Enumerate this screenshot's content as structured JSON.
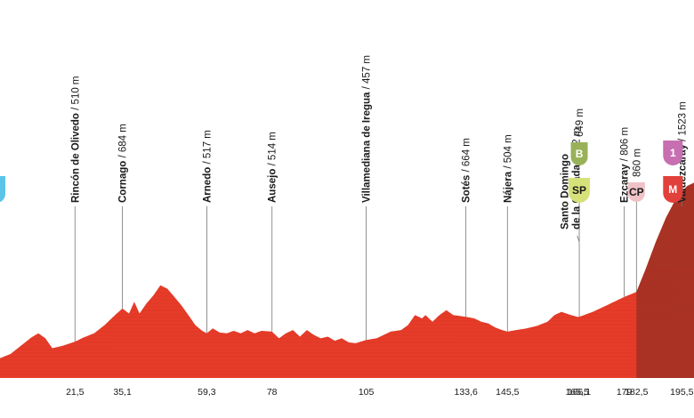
{
  "chart_data": {
    "type": "area",
    "title": "",
    "xlabel": "",
    "ylabel": "",
    "xlim": [
      0,
      199
    ],
    "ylim": [
      0,
      1650
    ],
    "colors": {
      "fill": "#e63c29",
      "finish_fill": "#a83224",
      "grid": "#b8281a",
      "axis": "#555555"
    },
    "profile": [
      {
        "km": 0,
        "elev": 320
      },
      {
        "km": 3,
        "elev": 345
      },
      {
        "km": 6,
        "elev": 395
      },
      {
        "km": 9,
        "elev": 445
      },
      {
        "km": 11,
        "elev": 470
      },
      {
        "km": 13,
        "elev": 440
      },
      {
        "km": 15,
        "elev": 380
      },
      {
        "km": 18,
        "elev": 395
      },
      {
        "km": 21.5,
        "elev": 420
      },
      {
        "km": 24,
        "elev": 445
      },
      {
        "km": 27,
        "elev": 470
      },
      {
        "km": 30,
        "elev": 520
      },
      {
        "km": 33,
        "elev": 580
      },
      {
        "km": 35.1,
        "elev": 620
      },
      {
        "km": 37,
        "elev": 590
      },
      {
        "km": 38.5,
        "elev": 660
      },
      {
        "km": 40,
        "elev": 590
      },
      {
        "km": 42,
        "elev": 650
      },
      {
        "km": 44,
        "elev": 700
      },
      {
        "km": 46,
        "elev": 760
      },
      {
        "km": 48,
        "elev": 740
      },
      {
        "km": 50,
        "elev": 690
      },
      {
        "km": 52,
        "elev": 640
      },
      {
        "km": 54,
        "elev": 580
      },
      {
        "km": 56,
        "elev": 520
      },
      {
        "km": 58,
        "elev": 485
      },
      {
        "km": 59.3,
        "elev": 470
      },
      {
        "km": 61,
        "elev": 500
      },
      {
        "km": 63,
        "elev": 475
      },
      {
        "km": 65,
        "elev": 470
      },
      {
        "km": 67,
        "elev": 485
      },
      {
        "km": 69,
        "elev": 470
      },
      {
        "km": 71,
        "elev": 490
      },
      {
        "km": 73,
        "elev": 470
      },
      {
        "km": 75,
        "elev": 485
      },
      {
        "km": 78,
        "elev": 480
      },
      {
        "km": 80,
        "elev": 440
      },
      {
        "km": 82,
        "elev": 470
      },
      {
        "km": 84,
        "elev": 490
      },
      {
        "km": 86,
        "elev": 450
      },
      {
        "km": 88,
        "elev": 490
      },
      {
        "km": 90,
        "elev": 460
      },
      {
        "km": 92,
        "elev": 440
      },
      {
        "km": 94,
        "elev": 450
      },
      {
        "km": 96,
        "elev": 425
      },
      {
        "km": 98,
        "elev": 440
      },
      {
        "km": 100,
        "elev": 415
      },
      {
        "km": 102,
        "elev": 410
      },
      {
        "km": 105,
        "elev": 430
      },
      {
        "km": 108,
        "elev": 440
      },
      {
        "km": 110,
        "elev": 460
      },
      {
        "km": 112,
        "elev": 480
      },
      {
        "km": 115,
        "elev": 490
      },
      {
        "km": 117,
        "elev": 520
      },
      {
        "km": 119,
        "elev": 580
      },
      {
        "km": 121,
        "elev": 560
      },
      {
        "km": 122,
        "elev": 580
      },
      {
        "km": 124,
        "elev": 540
      },
      {
        "km": 126,
        "elev": 580
      },
      {
        "km": 128,
        "elev": 610
      },
      {
        "km": 130,
        "elev": 580
      },
      {
        "km": 133.6,
        "elev": 570
      },
      {
        "km": 136,
        "elev": 560
      },
      {
        "km": 138,
        "elev": 540
      },
      {
        "km": 140,
        "elev": 530
      },
      {
        "km": 142,
        "elev": 505
      },
      {
        "km": 144,
        "elev": 490
      },
      {
        "km": 145.5,
        "elev": 480
      },
      {
        "km": 148,
        "elev": 490
      },
      {
        "km": 151,
        "elev": 500
      },
      {
        "km": 154,
        "elev": 515
      },
      {
        "km": 157,
        "elev": 540
      },
      {
        "km": 159,
        "elev": 580
      },
      {
        "km": 161,
        "elev": 600
      },
      {
        "km": 163,
        "elev": 585
      },
      {
        "km": 165.5,
        "elev": 570
      },
      {
        "km": 166.1,
        "elev": 570
      },
      {
        "km": 170,
        "elev": 600
      },
      {
        "km": 174,
        "elev": 640
      },
      {
        "km": 179,
        "elev": 690
      },
      {
        "km": 182.5,
        "elev": 720
      },
      {
        "km": 185,
        "elev": 850
      },
      {
        "km": 188,
        "elev": 1020
      },
      {
        "km": 191,
        "elev": 1170
      },
      {
        "km": 194,
        "elev": 1290
      },
      {
        "km": 197,
        "elev": 1360
      },
      {
        "km": 199,
        "elev": 1380
      }
    ],
    "finish_section_from_km": 182.5,
    "distance_ticks": [
      "21,5",
      "35,1",
      "59,3",
      "78",
      "105",
      "133,6",
      "145,5",
      "165,5",
      "166,1",
      "179",
      "182,5",
      "195,5"
    ],
    "distance_tick_values": [
      21.5,
      35.1,
      59.3,
      78,
      105,
      133.6,
      145.5,
      165.5,
      166.1,
      179,
      182.5,
      195.5
    ],
    "places": [
      {
        "name": "Rincón de Olivedo",
        "alt": "/ 510 m",
        "km": 21.5
      },
      {
        "name": "Cornago",
        "alt": "/ 684 m",
        "km": 35.1
      },
      {
        "name": "Arnedo",
        "alt": "/ 517 m",
        "km": 59.3
      },
      {
        "name": "Ausejo",
        "alt": "/ 514 m",
        "km": 78
      },
      {
        "name": "Villamediana de Iregua",
        "alt": "/ 457 m",
        "km": 105
      },
      {
        "name": "Sotés",
        "alt": "/ 664 m",
        "km": 133.6
      },
      {
        "name": "Nájera",
        "alt": "/ 504 m",
        "km": 145.5
      },
      {
        "name": "Santo Domingo",
        "name2": "de la Calzada",
        "alt": "/ 642 m",
        "km": 165.5,
        "leader_to_km": 166.1
      },
      {
        "name": "Ezcaray",
        "alt": "/ 806 m",
        "km": 179
      },
      {
        "name": "Valdezcaray",
        "alt": "/ 1523 m",
        "km": 195.5
      }
    ],
    "badges": [
      {
        "text": "B",
        "alt": "649 m",
        "km": 166.1,
        "color": "#99b25a",
        "text_color": "#ffffff"
      },
      {
        "text": "SP",
        "km": 166.1,
        "color": "#d6e17a",
        "text_color": "#1a1a1a"
      },
      {
        "text": "CP",
        "alt": "860 m",
        "km": 182.5,
        "color": "#f0c2c8",
        "text_color": "#1a1a1a"
      },
      {
        "text": "1",
        "km": 195.5,
        "color": "#c76fb1",
        "text_color": "#ffffff"
      },
      {
        "text": "M",
        "km": 195.5,
        "color": "#e2403a",
        "text_color": "#ffffff"
      }
    ],
    "start_badge_color": "#5bc4e8"
  }
}
